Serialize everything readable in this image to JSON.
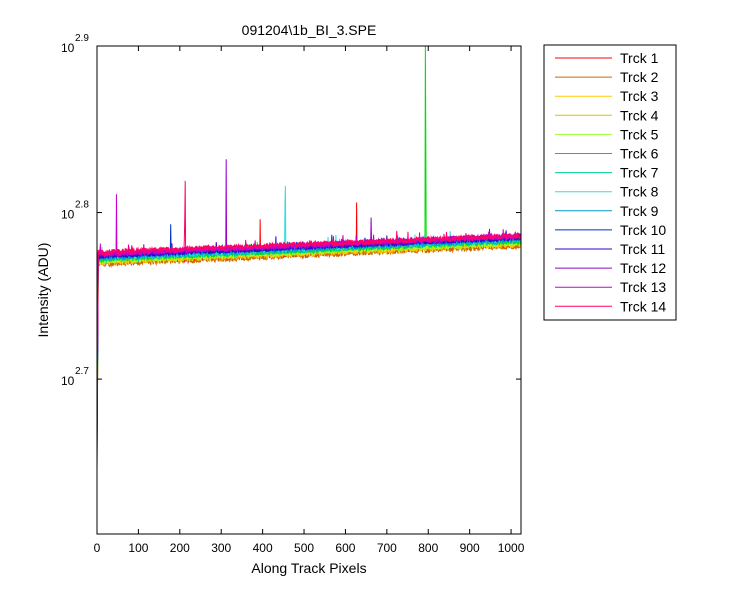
{
  "chart_data": {
    "type": "line",
    "title": "091204\\1b_BI_3.SPE",
    "xlabel": "Along Track Pixels",
    "ylabel": "Intensity (ADU)",
    "xlim": [
      0,
      1024
    ],
    "ylim_log10": [
      2.607,
      2.9
    ],
    "yscale": "log",
    "grid": false,
    "legend_placement": "outside-right",
    "x_ticks": [
      "0",
      "100",
      "200",
      "300",
      "400",
      "500",
      "600",
      "700",
      "800",
      "900",
      "1000"
    ],
    "x_tick_values": [
      0,
      100,
      200,
      300,
      400,
      500,
      600,
      700,
      800,
      900,
      1000
    ],
    "y_ticks": [
      {
        "base": "10",
        "exp": "2.7",
        "log10": 2.7
      },
      {
        "base": "10",
        "exp": "2.8",
        "log10": 2.8
      },
      {
        "base": "10",
        "exp": "2.9",
        "log10": 2.9
      }
    ],
    "series": [
      {
        "name": "Trck 1",
        "color": "#ff0000",
        "start_log10": 2.77,
        "end_log10": 2.781,
        "spikes": [
          [
            394,
            2.796
          ],
          [
            627,
            2.806
          ]
        ]
      },
      {
        "name": "Trck 2",
        "color": "#cc6600",
        "start_log10": 2.769,
        "end_log10": 2.78,
        "spikes": []
      },
      {
        "name": "Trck 3",
        "color": "#ffcc00",
        "start_log10": 2.77,
        "end_log10": 2.781,
        "spikes": []
      },
      {
        "name": "Trck 4",
        "color": "#cccc00",
        "start_log10": 2.771,
        "end_log10": 2.782,
        "spikes": []
      },
      {
        "name": "Trck 5",
        "color": "#99ff33",
        "start_log10": 2.771,
        "end_log10": 2.782,
        "spikes": []
      },
      {
        "name": "Trck 6",
        "color": "#00dd00",
        "start_log10": 2.772,
        "end_log10": 2.783,
        "spikes": [
          [
            793,
            2.9
          ],
          [
            794,
            2.848
          ]
        ]
      },
      {
        "name": "Trck 7",
        "color": "#00cc99",
        "start_log10": 2.772,
        "end_log10": 2.783,
        "spikes": []
      },
      {
        "name": "Trck 8",
        "color": "#33dddd",
        "start_log10": 2.773,
        "end_log10": 2.784,
        "spikes": [
          [
            455,
            2.816
          ],
          [
            454,
            2.806
          ]
        ]
      },
      {
        "name": "Trck 9",
        "color": "#0099cc",
        "start_log10": 2.773,
        "end_log10": 2.784,
        "spikes": []
      },
      {
        "name": "Trck 10",
        "color": "#0033cc",
        "start_log10": 2.774,
        "end_log10": 2.785,
        "spikes": [
          [
            178,
            2.793
          ]
        ]
      },
      {
        "name": "Trck 11",
        "color": "#3300cc",
        "start_log10": 2.774,
        "end_log10": 2.785,
        "spikes": []
      },
      {
        "name": "Trck 12",
        "color": "#9900cc",
        "start_log10": 2.775,
        "end_log10": 2.786,
        "spikes": [
          [
            312,
            2.832
          ],
          [
            662,
            2.797
          ]
        ]
      },
      {
        "name": "Trck 13",
        "color": "#cc00cc",
        "start_log10": 2.775,
        "end_log10": 2.786,
        "spikes": [
          [
            47,
            2.811
          ]
        ]
      },
      {
        "name": "Trck 14",
        "color": "#ff0066",
        "start_log10": 2.776,
        "end_log10": 2.786,
        "spikes": [
          [
            213,
            2.819
          ],
          [
            212,
            2.797
          ]
        ]
      }
    ]
  }
}
